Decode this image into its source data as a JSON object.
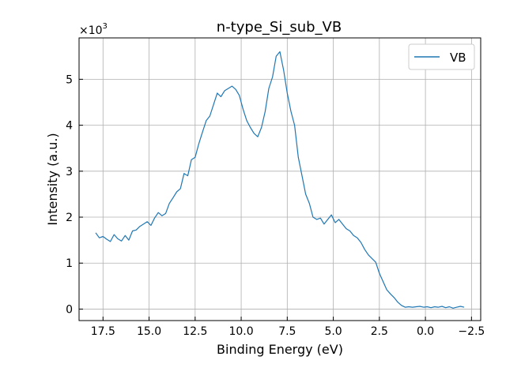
{
  "chart_data": {
    "type": "line",
    "title": "n-type_Si_sub_VB",
    "xlabel": "Binding Energy (eV)",
    "ylabel": "Intensity (a.u.)",
    "y_offset_text": "×10",
    "y_offset_exponent": "3",
    "y_multiplier": 1000,
    "xlim": [
      18.8,
      -3.0
    ],
    "x_inverted": true,
    "ylim": [
      -0.25,
      5.9
    ],
    "xticks": [
      17.5,
      15.0,
      12.5,
      10.0,
      7.5,
      5.0,
      2.5,
      0.0,
      -2.5
    ],
    "xtick_labels": [
      "17.5",
      "15.0",
      "12.5",
      "10.0",
      "7.5",
      "5.0",
      "2.5",
      "0.0",
      "−2.5"
    ],
    "yticks": [
      0,
      1,
      2,
      3,
      4,
      5
    ],
    "ytick_labels": [
      "0",
      "1",
      "2",
      "3",
      "4",
      "5"
    ],
    "grid": true,
    "legend_position": "upper right",
    "line_color": "#1f77b4",
    "series": [
      {
        "name": "VB",
        "x": [
          17.9,
          17.7,
          17.5,
          17.3,
          17.1,
          16.9,
          16.7,
          16.5,
          16.3,
          16.1,
          15.9,
          15.7,
          15.5,
          15.3,
          15.1,
          14.9,
          14.7,
          14.5,
          14.3,
          14.1,
          13.9,
          13.7,
          13.5,
          13.3,
          13.1,
          12.9,
          12.7,
          12.5,
          12.3,
          12.1,
          11.9,
          11.7,
          11.5,
          11.3,
          11.1,
          10.9,
          10.7,
          10.5,
          10.3,
          10.1,
          9.9,
          9.7,
          9.5,
          9.3,
          9.1,
          8.9,
          8.7,
          8.5,
          8.3,
          8.1,
          7.9,
          7.7,
          7.5,
          7.3,
          7.1,
          6.9,
          6.7,
          6.5,
          6.3,
          6.1,
          5.9,
          5.7,
          5.5,
          5.3,
          5.1,
          4.9,
          4.7,
          4.5,
          4.3,
          4.1,
          3.9,
          3.7,
          3.5,
          3.3,
          3.1,
          2.9,
          2.7,
          2.5,
          2.3,
          2.1,
          1.9,
          1.7,
          1.5,
          1.3,
          1.1,
          0.9,
          0.7,
          0.5,
          0.3,
          0.1,
          -0.1,
          -0.3,
          -0.5,
          -0.7,
          -0.9,
          -1.1,
          -1.3,
          -1.5,
          -1.7,
          -1.9,
          -2.1
        ],
        "y": [
          1.66,
          1.55,
          1.58,
          1.52,
          1.47,
          1.62,
          1.53,
          1.48,
          1.6,
          1.5,
          1.7,
          1.72,
          1.8,
          1.85,
          1.9,
          1.82,
          1.98,
          2.1,
          2.03,
          2.08,
          2.3,
          2.42,
          2.55,
          2.62,
          2.95,
          2.9,
          3.25,
          3.3,
          3.6,
          3.85,
          4.1,
          4.2,
          4.45,
          4.7,
          4.62,
          4.75,
          4.8,
          4.85,
          4.78,
          4.65,
          4.35,
          4.1,
          3.95,
          3.82,
          3.75,
          3.95,
          4.3,
          4.8,
          5.05,
          5.5,
          5.6,
          5.2,
          4.7,
          4.3,
          4.0,
          3.3,
          2.9,
          2.5,
          2.3,
          2.0,
          1.95,
          1.98,
          1.85,
          1.95,
          2.05,
          1.88,
          1.95,
          1.85,
          1.75,
          1.7,
          1.6,
          1.55,
          1.45,
          1.3,
          1.18,
          1.1,
          1.02,
          0.78,
          0.6,
          0.42,
          0.33,
          0.25,
          0.15,
          0.08,
          0.04,
          0.05,
          0.04,
          0.05,
          0.06,
          0.04,
          0.05,
          0.03,
          0.05,
          0.04,
          0.06,
          0.03,
          0.05,
          0.02,
          0.04,
          0.06,
          0.04
        ]
      }
    ]
  }
}
